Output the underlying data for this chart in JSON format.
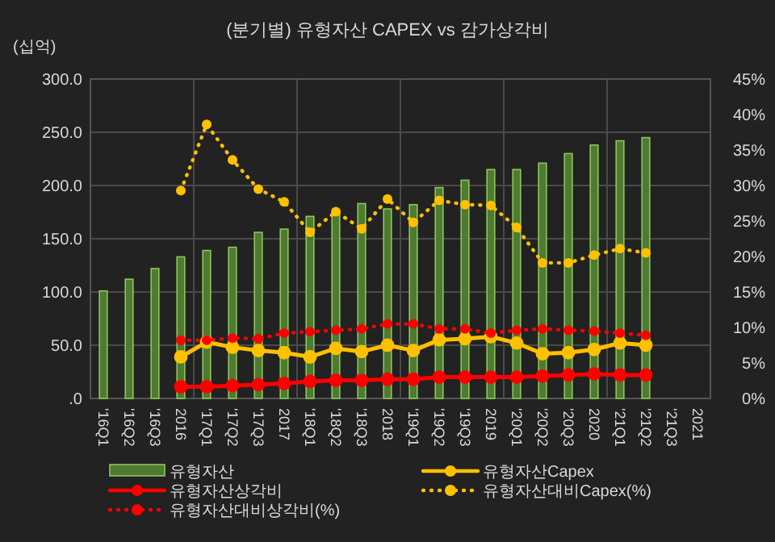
{
  "chart_data": {
    "type": "bar",
    "title": "(분기별) 유형자산 CAPEX vs 감가상각비",
    "ylabel": "(십억)",
    "categories": [
      "'16Q1",
      "'16Q2",
      "'16Q3",
      "2016",
      "'17Q1",
      "'17Q2",
      "'17Q3",
      "2017",
      "'18Q1",
      "'18Q2",
      "'18Q3",
      "2018",
      "'19Q1",
      "'19Q2",
      "'19Q3",
      "2019",
      "'20Q1",
      "'20Q2",
      "'20Q3",
      "2020",
      "'21Q1",
      "'21Q2",
      "'21Q3",
      "2021"
    ],
    "series": [
      {
        "name": "유형자산",
        "color": "#4e7a32",
        "values": [
          101,
          112,
          122,
          133,
          139,
          142,
          156,
          159,
          171,
          172,
          183,
          178,
          182,
          198,
          205,
          215,
          215,
          221,
          230,
          238,
          242,
          245,
          null,
          null
        ]
      },
      {
        "name": "유형자산Capex",
        "type": "line",
        "color": "#ffc000",
        "marker": "circle",
        "line_style": "solid",
        "values": [
          null,
          null,
          null,
          39,
          53,
          48,
          45,
          43,
          39,
          47,
          44,
          50,
          45,
          55,
          56,
          58,
          52,
          42,
          43,
          46,
          52,
          50,
          null,
          null
        ]
      },
      {
        "name": "유형자산상각비",
        "type": "line",
        "color": "#ff0000",
        "marker": "circle",
        "line_style": "solid",
        "values": [
          null,
          null,
          null,
          11,
          11,
          12,
          13,
          14,
          16,
          17,
          17,
          18,
          18,
          20,
          20,
          20,
          20,
          21,
          22,
          23,
          22,
          22,
          null,
          null
        ]
      },
      {
        "name": "유형자산대비Capex(%)",
        "type": "line",
        "axis": "y2",
        "color": "#ffc000",
        "marker": "circle",
        "line_style": "dotted",
        "values": [
          null,
          null,
          null,
          29.3,
          38.6,
          33.6,
          29.5,
          27.7,
          23.4,
          26.3,
          23.9,
          28.1,
          24.8,
          27.9,
          27.3,
          27.2,
          24.1,
          19.1,
          19.1,
          20.2,
          21.1,
          20.5,
          null,
          null
        ]
      },
      {
        "name": "유형자산대비상각비(%)",
        "type": "line",
        "axis": "y2",
        "color": "#ff0000",
        "marker": "circle",
        "line_style": "dotted",
        "values": [
          null,
          null,
          null,
          8.2,
          8.2,
          8.5,
          8.4,
          9.2,
          9.4,
          9.6,
          9.8,
          10.5,
          10.5,
          9.8,
          9.8,
          9.2,
          9.6,
          9.8,
          9.6,
          9.5,
          9.2,
          8.9,
          null,
          null
        ]
      }
    ],
    "ylim": [
      0,
      300
    ],
    "yticks": [
      {
        "value": 0,
        "label": ".0"
      },
      {
        "value": 50,
        "label": "50.0"
      },
      {
        "value": 100,
        "label": "100.0"
      },
      {
        "value": 150,
        "label": "150.0"
      },
      {
        "value": 200,
        "label": "200.0"
      },
      {
        "value": 250,
        "label": "250.0"
      },
      {
        "value": 300,
        "label": "300.0"
      }
    ],
    "y2lim": [
      0,
      45
    ],
    "y2ticks": [
      {
        "value": 0,
        "label": "0%"
      },
      {
        "value": 5,
        "label": "5%"
      },
      {
        "value": 10,
        "label": "10%"
      },
      {
        "value": 15,
        "label": "15%"
      },
      {
        "value": 20,
        "label": "20%"
      },
      {
        "value": 25,
        "label": "25%"
      },
      {
        "value": 30,
        "label": "30%"
      },
      {
        "value": 35,
        "label": "35%"
      },
      {
        "value": 40,
        "label": "40%"
      },
      {
        "value": 45,
        "label": "45%"
      }
    ],
    "grid": true,
    "legend": "bottom"
  }
}
